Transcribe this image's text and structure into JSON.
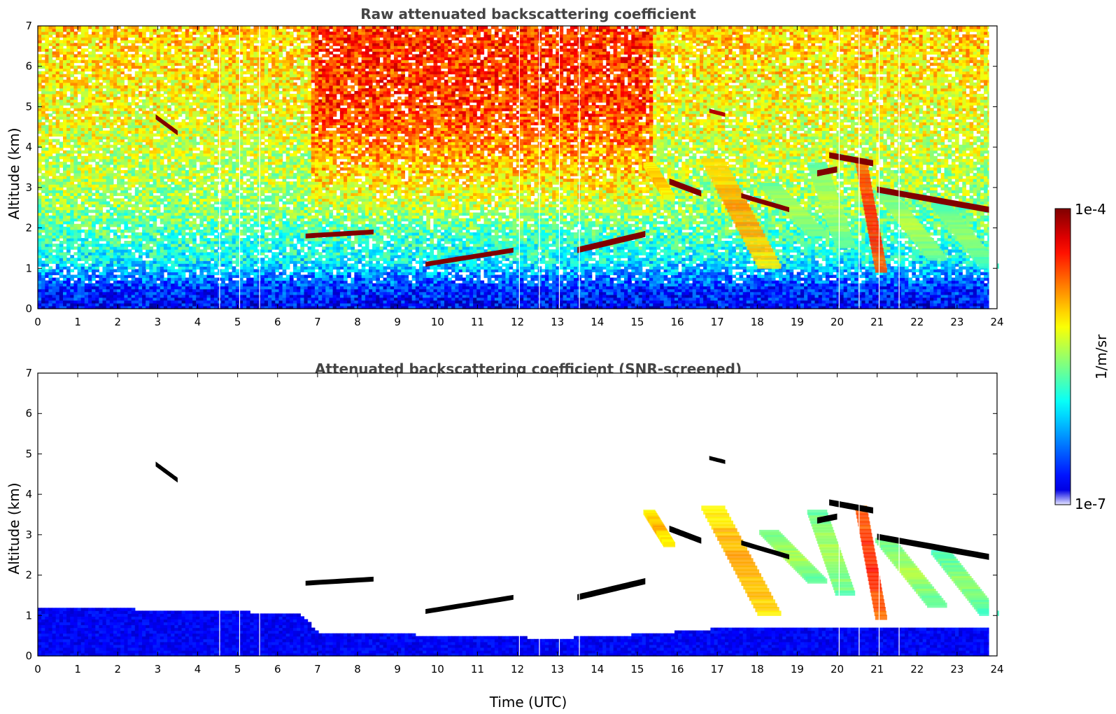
{
  "chart_data": [
    {
      "type": "heatmap",
      "title": "Raw attenuated backscattering coefficient",
      "xlabel": "",
      "ylabel": "Altitude (km)",
      "xlim": [
        0,
        24
      ],
      "ylim": [
        0,
        7
      ],
      "xticks": [
        0,
        1,
        2,
        3,
        4,
        5,
        6,
        7,
        8,
        9,
        10,
        11,
        12,
        13,
        14,
        15,
        16,
        17,
        18,
        19,
        20,
        21,
        22,
        23,
        24
      ],
      "yticks": [
        0,
        1,
        2,
        3,
        4,
        5,
        6,
        7
      ],
      "background_gradient": [
        {
          "alt": 0,
          "level": 0.12
        },
        {
          "alt": 0.5,
          "level": 0.18
        },
        {
          "alt": 1.2,
          "level": 0.38
        },
        {
          "alt": 2.5,
          "level": 0.52
        },
        {
          "alt": 4.5,
          "level": 0.6
        },
        {
          "alt": 7,
          "level": 0.68
        }
      ],
      "noisy_high_period": {
        "t_start": 6.8,
        "t_end": 15.3,
        "level_top": 0.84
      },
      "cloud_layers": [
        {
          "t": [
            2.95,
            3.5
          ],
          "alt_start": 4.75,
          "alt_end": 4.35,
          "thickness": 0.12,
          "level": 1.0
        },
        {
          "t": [
            6.7,
            8.4
          ],
          "alt_start": 1.8,
          "alt_end": 1.9,
          "thickness": 0.12,
          "level": 1.0
        },
        {
          "t": [
            9.7,
            11.9
          ],
          "alt_start": 1.1,
          "alt_end": 1.45,
          "thickness": 0.12,
          "level": 1.0
        },
        {
          "t": [
            13.5,
            15.2
          ],
          "alt_start": 1.45,
          "alt_end": 1.85,
          "thickness": 0.15,
          "level": 1.0
        },
        {
          "t": [
            15.8,
            16.6
          ],
          "alt_start": 3.15,
          "alt_end": 2.85,
          "thickness": 0.15,
          "level": 1.0
        },
        {
          "t": [
            16.8,
            17.2
          ],
          "alt_start": 4.9,
          "alt_end": 4.8,
          "thickness": 0.1,
          "level": 0.95
        },
        {
          "t": [
            17.6,
            18.8
          ],
          "alt_start": 2.8,
          "alt_end": 2.45,
          "thickness": 0.12,
          "level": 1.0
        },
        {
          "t": [
            19.5,
            20.0
          ],
          "alt_start": 3.35,
          "alt_end": 3.45,
          "thickness": 0.15,
          "level": 1.0
        },
        {
          "t": [
            19.8,
            20.9
          ],
          "alt_start": 3.8,
          "alt_end": 3.6,
          "thickness": 0.15,
          "level": 1.0
        },
        {
          "t": [
            21.0,
            23.8
          ],
          "alt_start": 2.95,
          "alt_end": 2.45,
          "thickness": 0.15,
          "level": 1.0
        }
      ],
      "fall_streaks": [
        {
          "t_top": 16.9,
          "alt_top": 3.6,
          "t_bottom": 18.3,
          "alt_bottom": 1.0,
          "width": 0.6,
          "level": 0.72
        },
        {
          "t_top": 15.3,
          "alt_top": 3.5,
          "t_bottom": 15.8,
          "alt_bottom": 2.7,
          "width": 0.3,
          "level": 0.7
        },
        {
          "t_top": 18.3,
          "alt_top": 3.0,
          "t_bottom": 19.5,
          "alt_bottom": 1.8,
          "width": 0.5,
          "level": 0.55
        },
        {
          "t_top": 19.5,
          "alt_top": 3.5,
          "t_bottom": 20.2,
          "alt_bottom": 1.5,
          "width": 0.5,
          "level": 0.55
        },
        {
          "t_top": 20.6,
          "alt_top": 3.6,
          "t_bottom": 21.1,
          "alt_bottom": 0.9,
          "width": 0.3,
          "level": 0.85
        },
        {
          "t_top": 21.2,
          "alt_top": 2.8,
          "t_bottom": 22.5,
          "alt_bottom": 1.2,
          "width": 0.5,
          "level": 0.55
        },
        {
          "t_top": 22.6,
          "alt_top": 2.5,
          "t_bottom": 23.8,
          "alt_bottom": 1.0,
          "width": 0.5,
          "level": 0.52
        }
      ],
      "data_gaps": [
        4.55,
        5.05,
        5.55,
        12.05,
        12.55,
        13.05,
        13.55,
        20.05,
        20.55,
        21.05,
        21.55
      ],
      "data_end": 23.8
    },
    {
      "type": "heatmap",
      "title": "Attenuated backscattering coefficient (SNR-screened)",
      "xlabel": "Time (UTC)",
      "ylabel": "Altitude (km)",
      "xlim": [
        0,
        24
      ],
      "ylim": [
        0,
        7
      ],
      "xticks": [
        0,
        1,
        2,
        3,
        4,
        5,
        6,
        7,
        8,
        9,
        10,
        11,
        12,
        13,
        14,
        15,
        16,
        17,
        18,
        19,
        20,
        21,
        22,
        23,
        24
      ],
      "yticks": [
        0,
        1,
        2,
        3,
        4,
        5,
        6,
        7
      ],
      "boundary_layer_top": [
        {
          "t": 0,
          "alt": 1.15
        },
        {
          "t": 4,
          "alt": 1.1
        },
        {
          "t": 6.5,
          "alt": 1.0
        },
        {
          "t": 7.0,
          "alt": 0.55
        },
        {
          "t": 8.0,
          "alt": 0.5
        },
        {
          "t": 9.0,
          "alt": 0.5
        },
        {
          "t": 11.0,
          "alt": 0.45
        },
        {
          "t": 13.0,
          "alt": 0.4
        },
        {
          "t": 15.0,
          "alt": 0.5
        },
        {
          "t": 16.5,
          "alt": 0.6
        },
        {
          "t": 17.5,
          "alt": 0.7
        },
        {
          "t": 23.8,
          "alt": 0.7
        }
      ],
      "boundary_layer_level": 0.12,
      "clipped_cloud_color": "#000000",
      "data_gaps": [
        4.55,
        5.05,
        5.55,
        12.05,
        12.55,
        13.05,
        13.55,
        20.05,
        20.55,
        21.05,
        21.55
      ],
      "data_end": 23.8
    }
  ],
  "colorbar": {
    "label": "1/m/sr",
    "max_label": "1e-4",
    "min_label": "1e-7",
    "scale": "log",
    "range": [
      1e-07,
      0.0001
    ],
    "colormap": "jet"
  }
}
